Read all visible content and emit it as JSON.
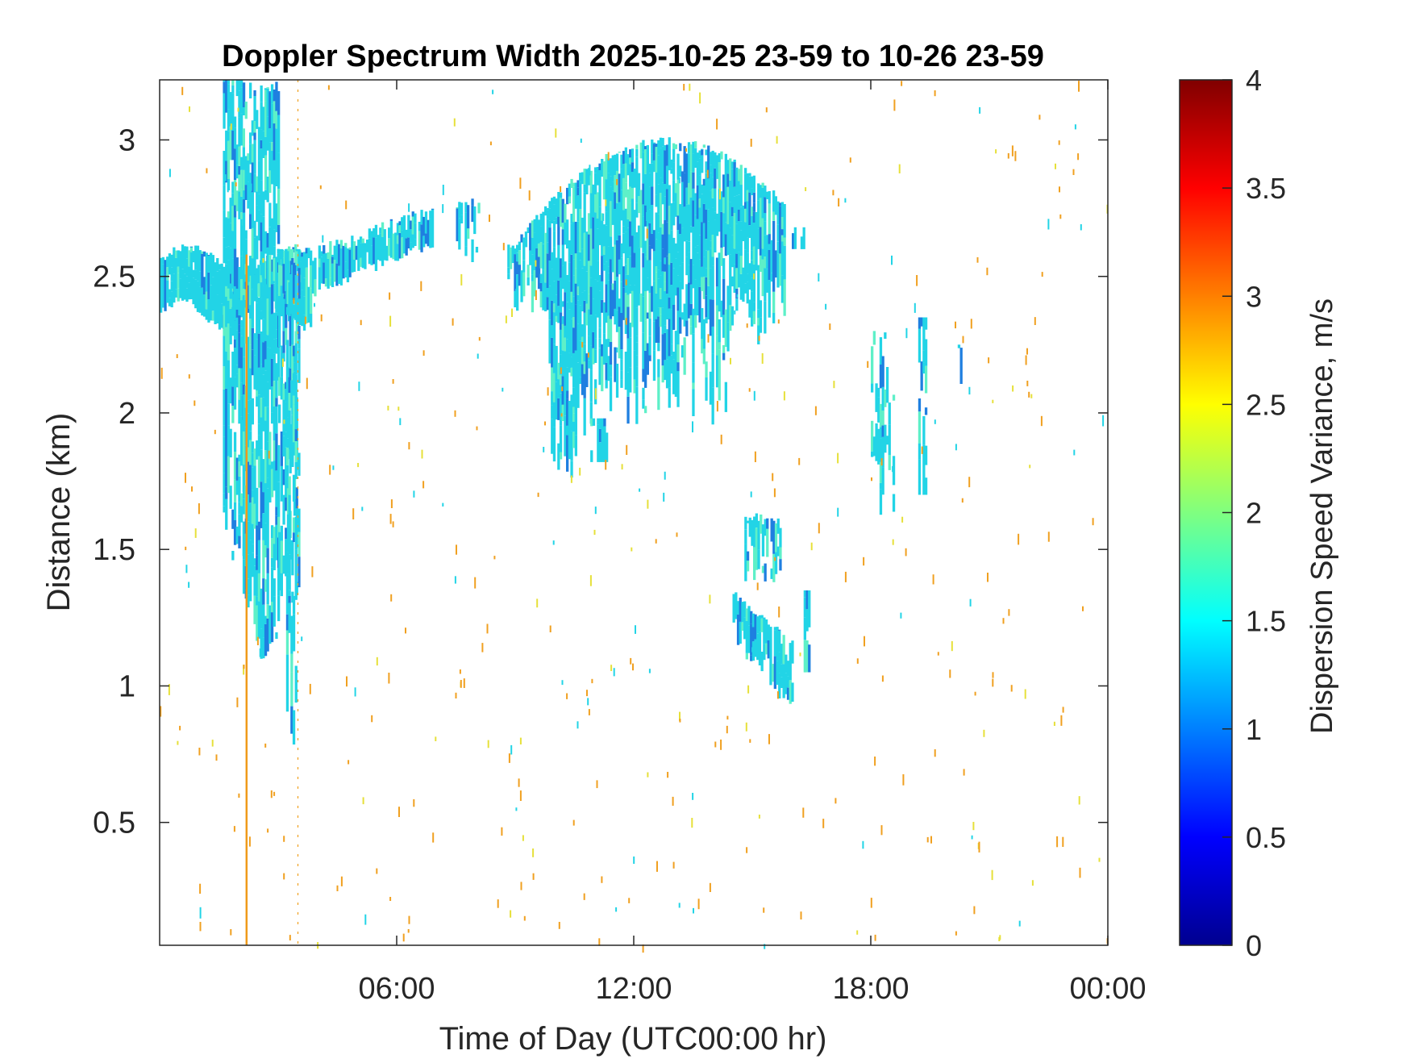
{
  "chart_data": {
    "type": "heatmap",
    "title": "Doppler Spectrum Width 2025-10-25 23-59 to 10-26 23-59",
    "xlabel": "Time of Day (UTC00:00 hr)",
    "ylabel": "Distance (km)",
    "xlim": [
      0,
      24
    ],
    "ylim": [
      0.05,
      3.22
    ],
    "x_ticks": [
      {
        "value": 6,
        "label": "06:00"
      },
      {
        "value": 12,
        "label": "12:00"
      },
      {
        "value": 18,
        "label": "18:00"
      },
      {
        "value": 24,
        "label": "00:00"
      }
    ],
    "y_ticks": [
      {
        "value": 0.5,
        "label": "0.5"
      },
      {
        "value": 1,
        "label": "1"
      },
      {
        "value": 1.5,
        "label": "1.5"
      },
      {
        "value": 2,
        "label": "2"
      },
      {
        "value": 2.5,
        "label": "2.5"
      },
      {
        "value": 3,
        "label": "3"
      }
    ],
    "colorbar": {
      "label": "Dispersion Speed Variance, m/s",
      "colormap": "jet",
      "range": [
        0,
        4
      ],
      "ticks": [
        {
          "value": 0,
          "label": "0"
        },
        {
          "value": 0.5,
          "label": "0.5"
        },
        {
          "value": 1,
          "label": "1"
        },
        {
          "value": 1.5,
          "label": "1.5"
        },
        {
          "value": 2,
          "label": "2"
        },
        {
          "value": 2.5,
          "label": "2.5"
        },
        {
          "value": 3,
          "label": "3"
        },
        {
          "value": 3.5,
          "label": "3.5"
        },
        {
          "value": 4,
          "label": "4"
        }
      ]
    },
    "colors": {
      "echo_main": "#22d4e6",
      "echo_dark": "#1f7fe0",
      "echo_light": "#5ef0c8",
      "noise_orange": "#f0a020",
      "noise_yellow": "#e6e03a",
      "spike_orange": "#ef9a1a"
    },
    "grid": false,
    "regions": [
      {
        "name": "morning_layer",
        "time": [
          0,
          6.9
        ],
        "height": [
          2.33,
          2.78
        ],
        "value": 1.5
      },
      {
        "name": "early_plume",
        "time": [
          1.5,
          3.8
        ],
        "height": [
          1.0,
          3.22
        ],
        "value": 1.4
      },
      {
        "name": "midday_cloud",
        "time": [
          8.8,
          15.8
        ],
        "height": [
          1.7,
          3.0
        ],
        "value": 1.35
      },
      {
        "name": "afternoon_patch_upper",
        "time": [
          14.8,
          15.8
        ],
        "height": [
          1.35,
          1.65
        ],
        "value": 1.2
      },
      {
        "name": "afternoon_patch_lower",
        "time": [
          14.5,
          16.0
        ],
        "height": [
          0.9,
          1.35
        ],
        "value": 1.2
      },
      {
        "name": "evening_streaks",
        "time": [
          17.0,
          20.0
        ],
        "height": [
          1.6,
          2.35
        ],
        "value": 1.7
      }
    ],
    "spike": {
      "time": 2.2,
      "value": 2.9
    }
  }
}
